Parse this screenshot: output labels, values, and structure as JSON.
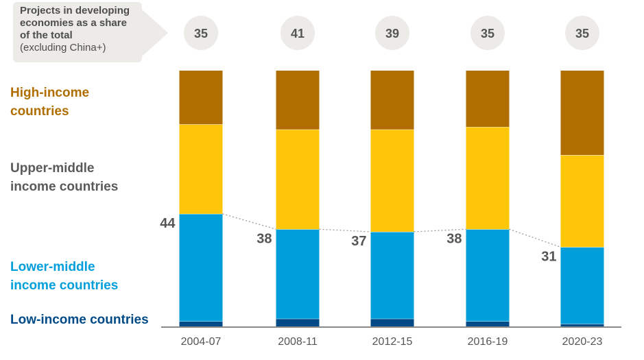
{
  "callout": {
    "title": "Projects in developing economies as a share of the total",
    "title_lines": [
      "Projects in developing",
      "economies as a share",
      "of the total"
    ],
    "note": "(excluding China+)"
  },
  "legend": {
    "high": [
      "High-income",
      "countries"
    ],
    "upper_middle": [
      "Upper-middle",
      "income countries"
    ],
    "lower_middle": [
      "Lower-middle",
      "income countries"
    ],
    "low": "Low-income countries"
  },
  "colors": {
    "high": "#b06e00",
    "upper_middle": "#fdc60b",
    "lower_middle": "#009fdc",
    "low": "#004b87",
    "bubble": "#edebe8",
    "text": "#555555"
  },
  "chart_data": {
    "type": "bar",
    "stacked": true,
    "categories": [
      "2004-07",
      "2008-11",
      "2012-15",
      "2016-19",
      "2020-23"
    ],
    "series": [
      {
        "name": "Low-income countries",
        "values": [
          2,
          3,
          3,
          2,
          1
        ]
      },
      {
        "name": "Lower-middle income countries",
        "values": [
          42,
          35,
          34,
          36,
          30
        ]
      },
      {
        "name": "Upper-middle income countries",
        "values": [
          35,
          39,
          40,
          40,
          36
        ]
      },
      {
        "name": "High-income countries",
        "values": [
          21,
          23,
          23,
          22,
          33
        ]
      }
    ],
    "low_plus_lower_middle_labels": [
      "44",
      "38",
      "37",
      "38",
      "31"
    ],
    "developing_share_labels": [
      "35",
      "41",
      "39",
      "35",
      "35"
    ],
    "ylim": [
      0,
      100
    ],
    "xlabel": "",
    "ylabel": "",
    "grid": false
  }
}
